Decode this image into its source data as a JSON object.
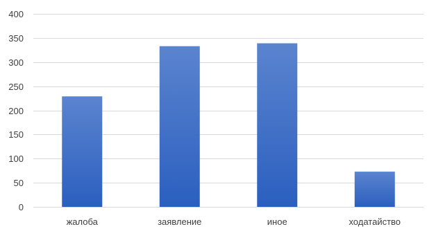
{
  "chart_data": {
    "type": "bar",
    "categories": [
      "жалоба",
      "заявление",
      "иное",
      "ходатайство"
    ],
    "values": [
      229,
      333,
      339,
      73
    ],
    "ylim": [
      0,
      400
    ],
    "yticks": [
      0,
      50,
      100,
      150,
      200,
      250,
      300,
      350,
      400
    ],
    "grid": true,
    "legend": "none",
    "bar_color_top": "#5b84cf",
    "bar_color_bottom": "#2b5fbf",
    "grid_color": "#d9d9d9",
    "label_color": "#404040"
  }
}
